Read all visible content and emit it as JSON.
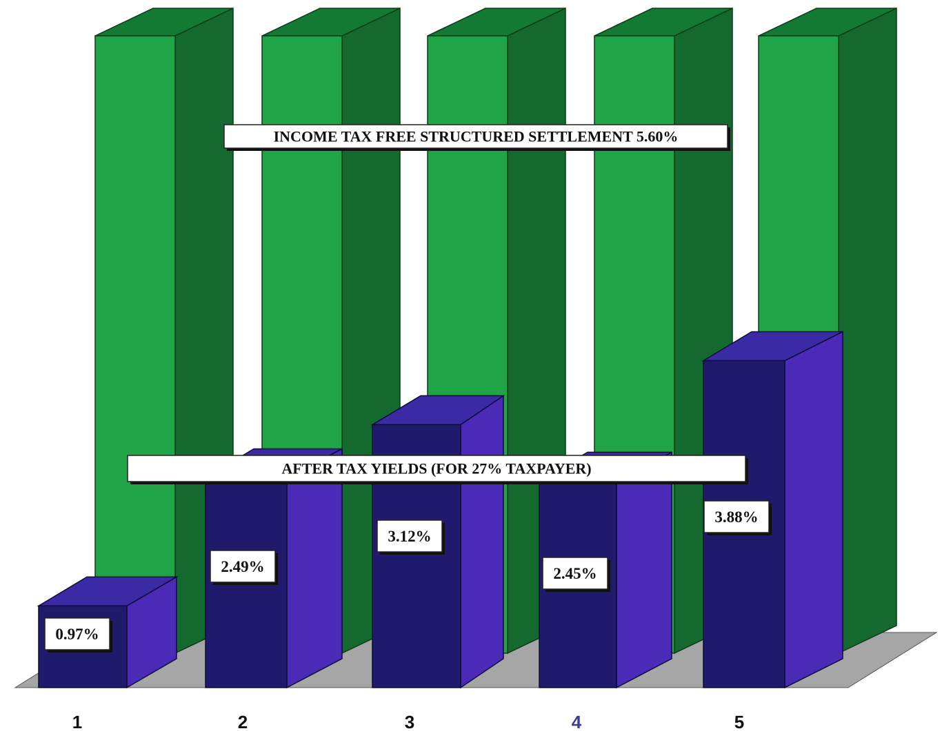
{
  "chart_data": {
    "type": "bar",
    "categories": [
      "1",
      "2",
      "3",
      "4",
      "5"
    ],
    "series": [
      {
        "name": "INCOME TAX FREE STRUCTURED SETTLEMENT 5.60%",
        "values": [
          5.6,
          5.6,
          5.6,
          5.6,
          5.6
        ]
      },
      {
        "name": "AFTER TAX YIELDS (FOR 27% TAXPAYER)",
        "values": [
          0.97,
          2.49,
          3.12,
          2.45,
          3.88
        ]
      }
    ],
    "data_labels": [
      "0.97%",
      "2.49%",
      "3.12%",
      "2.45%",
      "3.88%"
    ],
    "title": "",
    "xlabel": "",
    "ylabel": "",
    "ylim": [
      0,
      5.6
    ],
    "grid": false,
    "legend": "inline labels",
    "colors": {
      "green_front": "#1fa447",
      "green_side": "#146a2e",
      "green_top": "#137a33",
      "blue_front": "#1f1a6b",
      "blue_side": "#4b2ab8",
      "blue_top": "#3a2aa3",
      "floor": "#a6a6a6",
      "category_label_4": "#3a3aa8"
    }
  }
}
